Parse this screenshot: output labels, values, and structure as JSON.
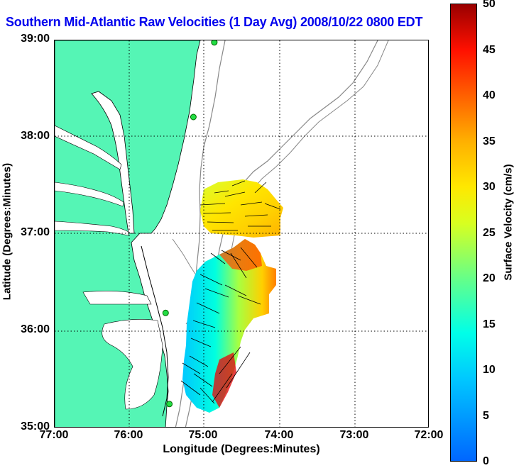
{
  "title": "Southern Mid-Atlantic Raw Velocities (1 Day Avg) 2008/10/22 0800 EDT",
  "map": {
    "x_axis_label": "Longitude (Degrees:Minutes)",
    "y_axis_label": "Latitude (Degrees:Minutes)",
    "x_ticks": [
      "77:00",
      "76:00",
      "75:00",
      "74:00",
      "73:00",
      "72:00"
    ],
    "y_ticks": [
      "39:00",
      "38:00",
      "37:00",
      "36:00",
      "35:00"
    ],
    "lon_range": [
      -77,
      -72
    ],
    "lat_range": [
      35,
      39
    ],
    "land_color": "#55f5b5",
    "grid": "dotted"
  },
  "colorbar": {
    "title": "Surface Velocity (cm/s)",
    "ticks": [
      "50",
      "45",
      "40",
      "35",
      "30",
      "25",
      "20",
      "15",
      "10",
      "5",
      "0"
    ],
    "range": [
      0,
      50
    ]
  },
  "stations": [
    {
      "lon": -74.87,
      "lat": 38.98
    },
    {
      "lon": -75.15,
      "lat": 38.21
    },
    {
      "lon": -75.52,
      "lat": 36.19
    },
    {
      "lon": -75.47,
      "lat": 35.25
    }
  ]
}
